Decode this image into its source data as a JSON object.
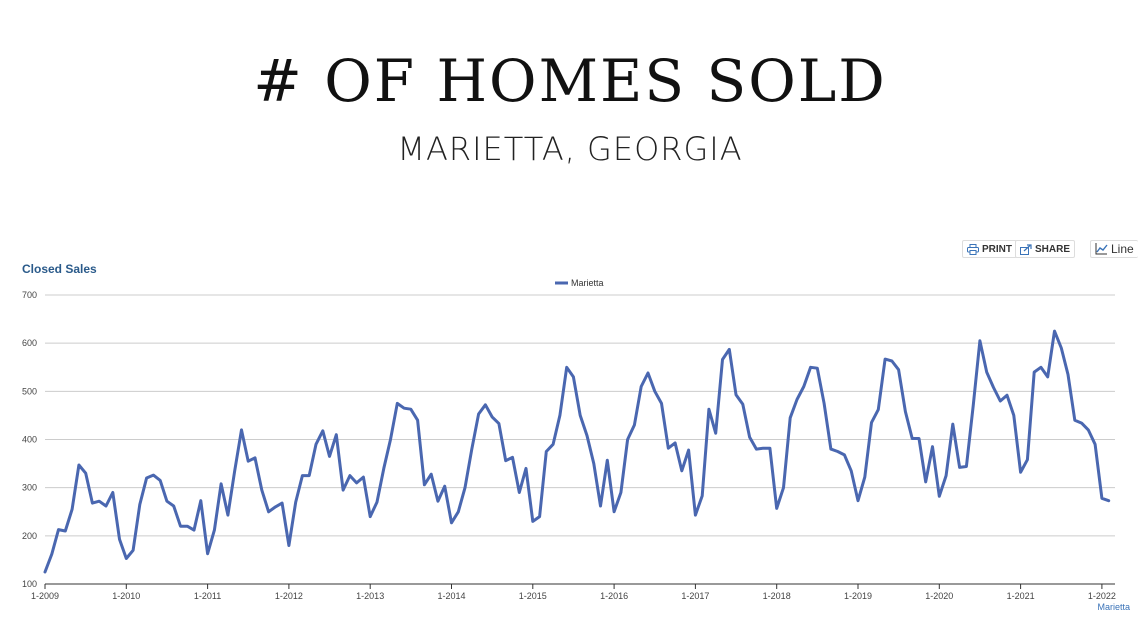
{
  "header": {
    "title": "# OF HOMES SOLD",
    "subtitle": "MARIETTA, GEORGIA"
  },
  "toolbar": {
    "print_label": "PRINT",
    "share_label": "SHARE",
    "line_label": "Line",
    "print_icon": "printer-icon",
    "share_icon": "share-icon",
    "line_icon": "line-chart-icon"
  },
  "colors": {
    "series": "#4a67b0",
    "grid": "#cccccc",
    "title": "#2a5a8a",
    "caption": "#3a73b8"
  },
  "chart_data": {
    "type": "line",
    "title": "Closed Sales",
    "xlabel": "Marietta",
    "ylabel": "",
    "ylim": [
      100,
      700
    ],
    "yticks": [
      100,
      200,
      300,
      400,
      500,
      600,
      700
    ],
    "xlim": [
      "1-2009",
      "2-2022"
    ],
    "x_tick_labels": [
      "1-2009",
      "1-2010",
      "1-2011",
      "1-2012",
      "1-2013",
      "1-2014",
      "1-2015",
      "1-2016",
      "1-2017",
      "1-2018",
      "1-2019",
      "1-2020",
      "1-2021",
      "1-2022"
    ],
    "grid": true,
    "legend_position": "top-center",
    "series": [
      {
        "name": "Marietta",
        "color": "#4a67b0",
        "start": "1-2009",
        "frequency": "monthly",
        "values": [
          125,
          162,
          213,
          210,
          255,
          347,
          330,
          268,
          272,
          262,
          290,
          193,
          153,
          170,
          265,
          320,
          326,
          315,
          272,
          262,
          220,
          220,
          212,
          273,
          163,
          212,
          308,
          243,
          335,
          420,
          355,
          362,
          295,
          250,
          260,
          268,
          180,
          270,
          325,
          325,
          390,
          418,
          365,
          410,
          295,
          325,
          310,
          322,
          240,
          270,
          340,
          400,
          475,
          465,
          463,
          440,
          306,
          328,
          272,
          303,
          227,
          250,
          300,
          380,
          453,
          472,
          447,
          433,
          356,
          363,
          290,
          340,
          230,
          240,
          375,
          390,
          450,
          550,
          530,
          450,
          408,
          350,
          262,
          357,
          250,
          290,
          400,
          430,
          510,
          538,
          500,
          475,
          382,
          393,
          335,
          378,
          243,
          283,
          463,
          413,
          566,
          587,
          493,
          473,
          405,
          380,
          382,
          382,
          257,
          300,
          445,
          483,
          510,
          550,
          548,
          475,
          380,
          375,
          368,
          335,
          273,
          322,
          435,
          462,
          567,
          563,
          545,
          458,
          402,
          402,
          312,
          385,
          282,
          325,
          432,
          342,
          344,
          470,
          605,
          540,
          508,
          480,
          492,
          450,
          332,
          358,
          540,
          550,
          530,
          625,
          590,
          535,
          440,
          434,
          420,
          390,
          278,
          273
        ]
      }
    ]
  }
}
